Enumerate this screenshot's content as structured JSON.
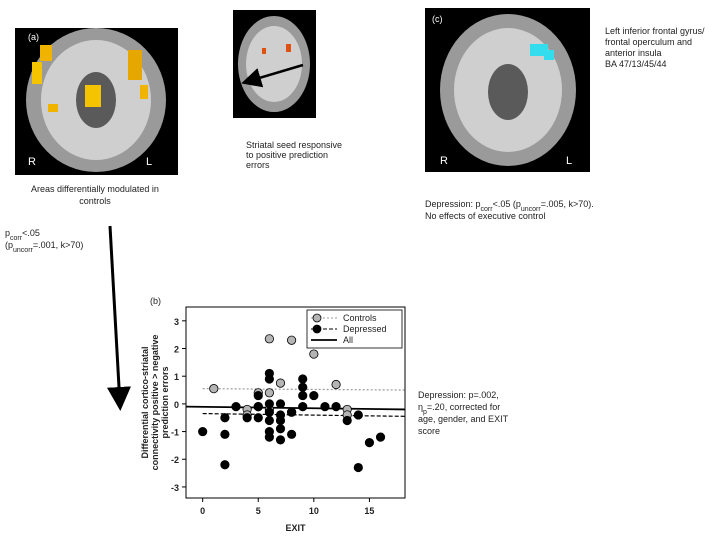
{
  "panel_a": {
    "label": "(a)",
    "left": "R",
    "right": "L",
    "caption": [
      "Areas differentially modulated in",
      "controls"
    ],
    "stats": [
      [
        "p",
        "corr",
        "<.05"
      ],
      [
        "(p",
        "uncorr",
        "=.001, k>70)"
      ]
    ]
  },
  "seed": {
    "caption": [
      "Striatal seed responsive",
      "to positive prediction",
      "errors"
    ]
  },
  "panel_c": {
    "label": "(c)",
    "left": "R",
    "right": "L",
    "region": [
      "Left inferior frontal gyrus/",
      "frontal operculum and",
      "anterior insula",
      "BA 47/13/45/44"
    ],
    "stats": [
      [
        "Depression: p",
        "corr",
        "<.05 (p",
        "uncorr",
        "=.005, k>70)."
      ],
      [
        "No effects of executive control"
      ]
    ]
  },
  "chart_data": {
    "type": "scatter",
    "label": "(b)",
    "x_label": "EXIT",
    "y_label": [
      "Differential cortico-striatal",
      "connectivity positive > negative",
      "prediction errors"
    ],
    "xlim": [
      -1.5,
      18.2
    ],
    "ylim": [
      -3.4,
      3.5
    ],
    "xticks": [
      0,
      5,
      10,
      15
    ],
    "yticks": [
      -3,
      -2,
      -1,
      0,
      1,
      2,
      3
    ],
    "legend": "upper right",
    "series": [
      {
        "name": "Controls",
        "color": "#b4b4b4",
        "x": [
          1,
          4,
          4,
          5,
          5,
          6,
          6,
          6,
          7,
          8,
          8,
          10,
          12,
          13,
          13
        ],
        "values": [
          0.55,
          -0.2,
          -0.4,
          0.4,
          -0.1,
          2.35,
          0.4,
          -0.2,
          0.75,
          2.3,
          -0.3,
          1.8,
          0.7,
          -0.2,
          -0.4
        ],
        "fit": {
          "style": "dotted",
          "color": "#999999",
          "x": [
            0,
            18.2
          ],
          "values": [
            0.55,
            0.5
          ]
        }
      },
      {
        "name": "Depressed",
        "color": "#000000",
        "x": [
          0,
          2,
          2,
          2,
          3,
          4,
          5,
          5,
          5,
          6,
          6,
          6,
          6,
          6,
          6,
          6,
          7,
          7,
          7,
          7,
          7,
          8,
          8,
          9,
          9,
          9,
          9,
          10,
          11,
          12,
          13,
          14,
          14,
          15,
          16
        ],
        "values": [
          -1.0,
          -2.2,
          -0.5,
          -1.1,
          -0.1,
          -0.5,
          -0.5,
          -0.1,
          0.3,
          1.1,
          0.9,
          0.0,
          -0.3,
          -0.6,
          -1.0,
          -1.2,
          -0.9,
          -1.3,
          -0.6,
          0.0,
          -0.4,
          -0.3,
          -1.1,
          0.9,
          0.6,
          0.3,
          -0.1,
          0.3,
          -0.1,
          -0.1,
          -0.6,
          -0.4,
          -2.3,
          -1.4,
          -1.2
        ],
        "fit": {
          "style": "dashed",
          "color": "#000000",
          "x": [
            0,
            18.2
          ],
          "values": [
            -0.35,
            -0.45
          ]
        }
      }
    ],
    "overall_fit": {
      "name": "All",
      "style": "solid",
      "color": "#000000",
      "x": [
        -1.5,
        18.2
      ],
      "values": [
        -0.1,
        -0.2
      ]
    },
    "annotation": [
      [
        "Depression: p=.002,"
      ],
      [
        "η",
        "p",
        "=.20, corrected for"
      ],
      [
        "age, gender, and EXIT"
      ],
      [
        "score"
      ]
    ]
  }
}
